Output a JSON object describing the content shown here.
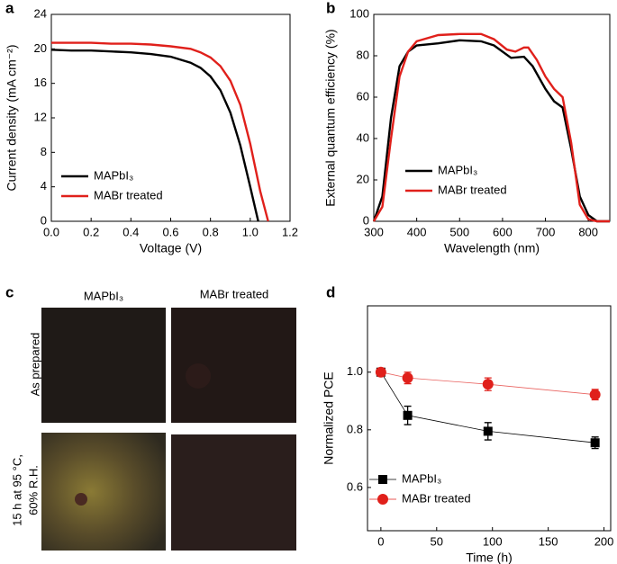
{
  "chart_data": [
    {
      "type": "line",
      "panel_label": "a",
      "x_label": "Voltage (V)",
      "y_label": "Current density (mA cm⁻²)",
      "xlim": [
        0,
        1.2
      ],
      "xticks": [
        {
          "value": 0,
          "label": "0.0"
        },
        0.2,
        0.4,
        0.6,
        0.8,
        {
          "value": 1,
          "label": "1.0"
        },
        1.2
      ],
      "ylim": [
        0,
        24
      ],
      "yticks": [
        0,
        4,
        8,
        12,
        16,
        20,
        24
      ],
      "legend": "lower-left",
      "series": [
        {
          "name": "MAPbI₃",
          "color": "#000000",
          "x": [
            0,
            0.1,
            0.2,
            0.3,
            0.4,
            0.5,
            0.6,
            0.7,
            0.75,
            0.8,
            0.85,
            0.9,
            0.95,
            1.0,
            1.04
          ],
          "values": [
            19.9,
            19.8,
            19.8,
            19.7,
            19.6,
            19.4,
            19.1,
            18.4,
            17.8,
            16.8,
            15.2,
            12.6,
            8.8,
            4.0,
            0
          ]
        },
        {
          "name": "MABr treated",
          "color": "#e0201b",
          "x": [
            0,
            0.1,
            0.2,
            0.3,
            0.4,
            0.5,
            0.6,
            0.7,
            0.75,
            0.8,
            0.85,
            0.9,
            0.95,
            1.0,
            1.05,
            1.09
          ],
          "values": [
            20.7,
            20.7,
            20.7,
            20.6,
            20.6,
            20.5,
            20.3,
            20.0,
            19.6,
            19.0,
            18.0,
            16.3,
            13.5,
            9.0,
            3.5,
            0
          ]
        }
      ]
    },
    {
      "type": "line",
      "panel_label": "b",
      "x_label": "Wavelength (nm)",
      "y_label": "External quantum efficiency (%)",
      "xlim": [
        300,
        850
      ],
      "xticks": [
        300,
        400,
        500,
        600,
        700,
        800
      ],
      "ylim": [
        0,
        100
      ],
      "yticks": [
        0,
        20,
        40,
        60,
        80,
        100
      ],
      "legend": "lower-left",
      "series": [
        {
          "name": "MAPbI₃",
          "color": "#000000",
          "x": [
            300,
            320,
            340,
            360,
            380,
            400,
            450,
            500,
            550,
            580,
            620,
            650,
            670,
            700,
            720,
            740,
            760,
            780,
            800,
            820,
            850
          ],
          "values": [
            0,
            12,
            50,
            75,
            82,
            85,
            86,
            87.5,
            87,
            85,
            79,
            79.5,
            75,
            64,
            58,
            55,
            35,
            12,
            3,
            0,
            0
          ]
        },
        {
          "name": "MABr treated",
          "color": "#e0201b",
          "x": [
            300,
            320,
            340,
            360,
            380,
            400,
            450,
            500,
            550,
            580,
            610,
            630,
            650,
            660,
            680,
            700,
            720,
            740,
            760,
            780,
            800,
            820,
            850
          ],
          "values": [
            0,
            7,
            40,
            70,
            82,
            87,
            90,
            90.5,
            90.5,
            88,
            83,
            82,
            84,
            84,
            78,
            70,
            64,
            60,
            38,
            8,
            1,
            0,
            0
          ]
        }
      ]
    },
    {
      "type": "errorline",
      "panel_label": "d",
      "x_label": "Time (h)",
      "y_label": "Normalized PCE",
      "xlim": [
        -12,
        206
      ],
      "xticks": [
        0,
        50,
        100,
        150,
        200
      ],
      "ylim": [
        0.45,
        1.23
      ],
      "yticks": [
        0.6,
        0.8,
        {
          "value": 1,
          "label": "1.0"
        }
      ],
      "legend": "lower-left",
      "series": [
        {
          "name": "MAPbI₃",
          "color": "#000000",
          "marker": "square",
          "x": [
            0,
            24,
            96,
            192
          ],
          "values": [
            1.0,
            0.85,
            0.795,
            0.755
          ],
          "errors": [
            0,
            0.032,
            0.03,
            0.02
          ]
        },
        {
          "name": "MABr treated",
          "color": "#e0201b",
          "marker": "circle",
          "x": [
            0,
            24,
            96,
            192
          ],
          "values": [
            1.0,
            0.98,
            0.958,
            0.922
          ],
          "errors": [
            0.008,
            0.02,
            0.022,
            0.018
          ]
        }
      ]
    }
  ],
  "panel_c": {
    "panel_label": "c",
    "columns": [
      "MAPbI₃",
      "MABr treated"
    ],
    "rows": [
      "As prepared",
      "15 h at 95 °C,",
      "60% R.H."
    ]
  }
}
